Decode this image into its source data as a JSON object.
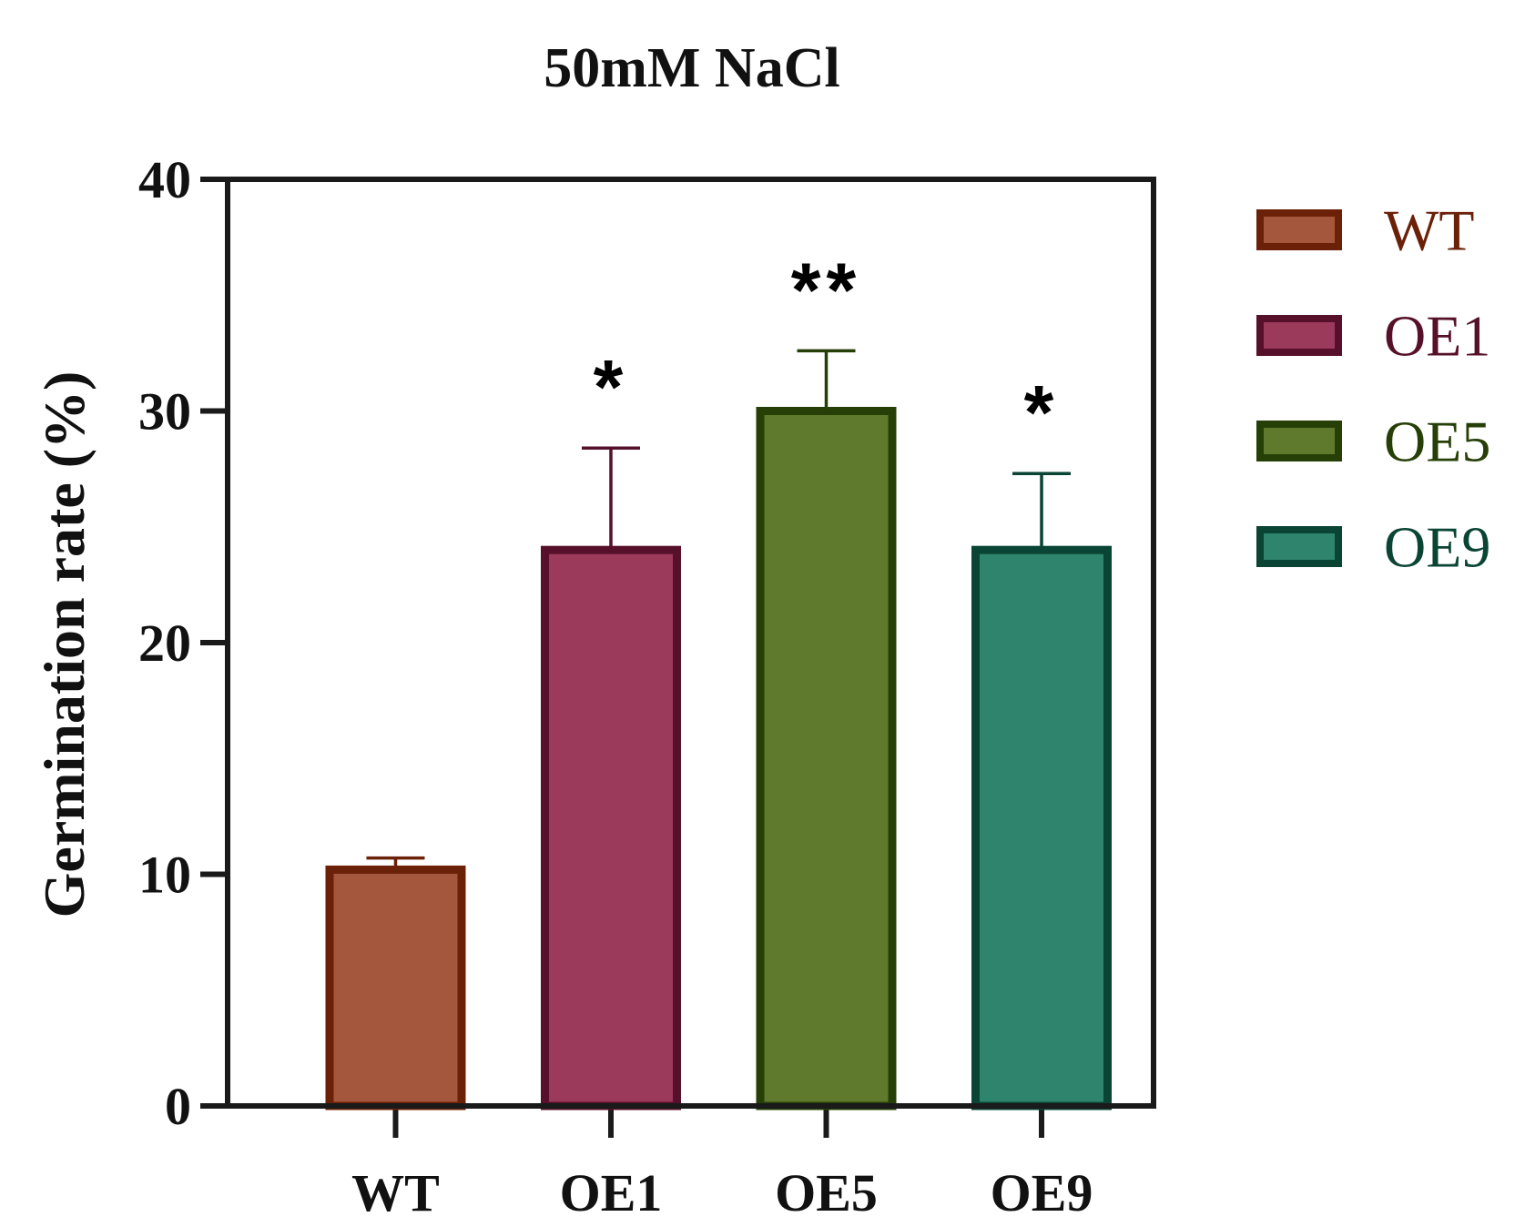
{
  "chart_data": {
    "type": "bar",
    "title": "50mM NaCl",
    "xlabel": "",
    "ylabel": "Germination rate (%)",
    "ylim": [
      0,
      40
    ],
    "yticks": [
      0,
      10,
      20,
      30,
      40
    ],
    "categories": [
      "WT",
      "OE1",
      "OE5",
      "OE9"
    ],
    "values": [
      10.2,
      24.0,
      30.0,
      24.0
    ],
    "error_upper": [
      10.7,
      28.4,
      32.6,
      27.3
    ],
    "significance": [
      "",
      "*",
      "**",
      "*"
    ],
    "series": [
      {
        "name": "WT",
        "value": 10.2,
        "fill": "#a4573d",
        "stroke": "#6b2008",
        "text_color": "#6b2008"
      },
      {
        "name": "OE1",
        "value": 24.0,
        "fill": "#9c3a5b",
        "stroke": "#561029",
        "text_color": "#561029"
      },
      {
        "name": "OE5",
        "value": 30.0,
        "fill": "#5f7a2d",
        "stroke": "#263f07",
        "text_color": "#263f07"
      },
      {
        "name": "OE9",
        "value": 24.0,
        "fill": "#2e846c",
        "stroke": "#0a4434",
        "text_color": "#0a4434"
      }
    ],
    "legend": {
      "position": "right",
      "entries": [
        "WT",
        "OE1",
        "OE5",
        "OE9"
      ]
    },
    "grid": false
  }
}
